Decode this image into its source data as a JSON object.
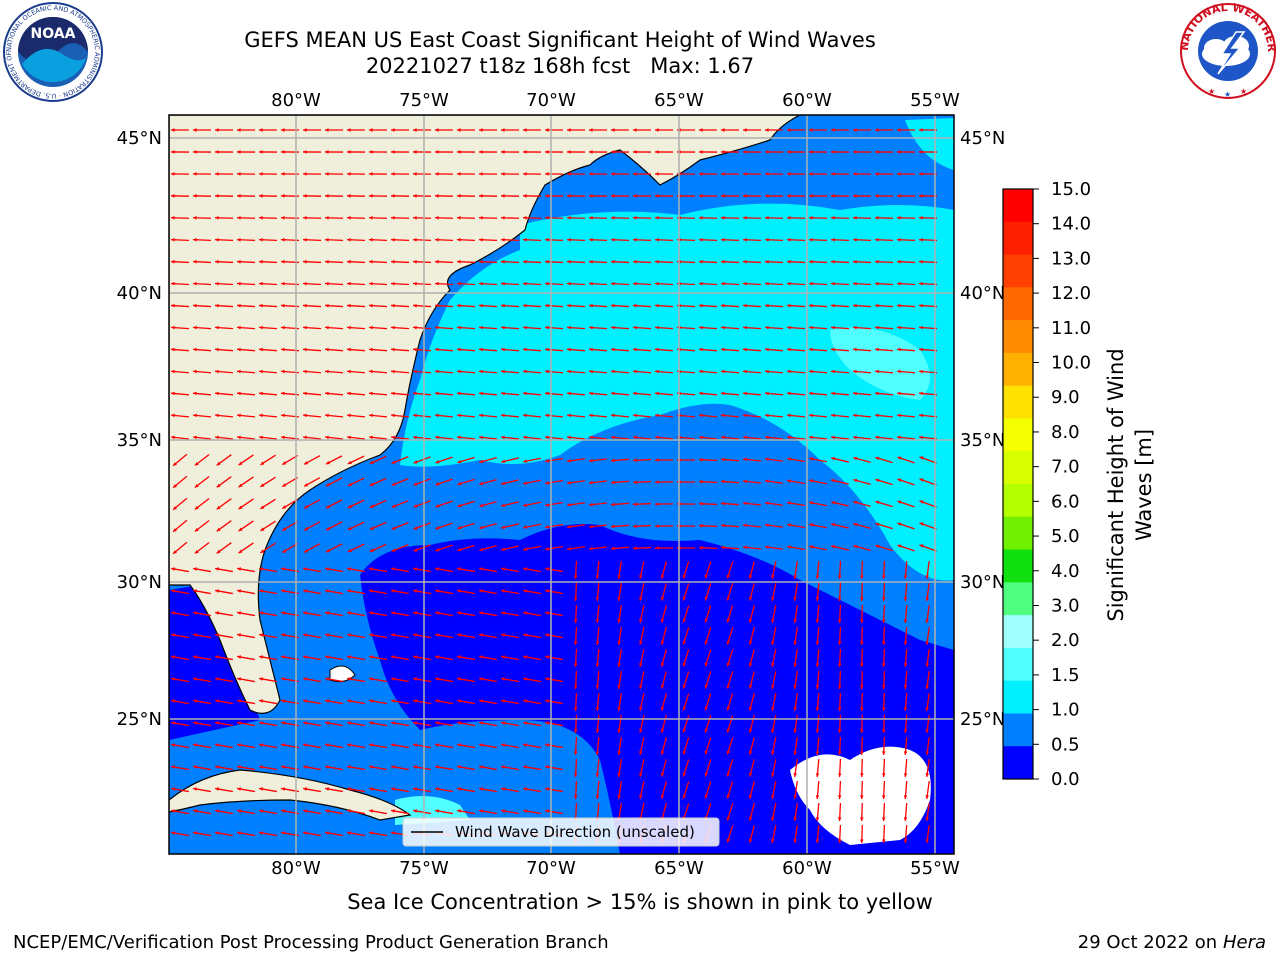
{
  "header": {
    "title_line1": "GEFS MEAN US East Coast Significant Height of Wind Waves",
    "title_line2": "20221027 t18z 168h fcst   Max: 1.67"
  },
  "logos": {
    "noaa_text": "NOAA",
    "noaa_ring": "NATIONAL OCEANIC AND ATMOSPHERIC ADMINISTRATION · U.S. DEPARTMENT OF COMMERCE",
    "nws_ring": "NATIONAL WEATHER SERVICE"
  },
  "map": {
    "lon_labels": [
      "80°W",
      "75°W",
      "70°W",
      "65°W",
      "60°W",
      "55°W"
    ],
    "lat_labels": [
      "45°N",
      "40°N",
      "35°N",
      "30°N",
      "25°N"
    ],
    "legend_label": "Wind Wave Direction (unscaled)"
  },
  "colorbar": {
    "label_line1": "Significant Height of Wind",
    "label_line2": "Waves [m]",
    "ticks": [
      "15.0",
      "14.0",
      "13.0",
      "12.0",
      "11.0",
      "10.0",
      "9.0",
      "8.0",
      "7.0",
      "6.0",
      "5.0",
      "4.0",
      "3.0",
      "2.0",
      "1.5",
      "1.0",
      "0.5",
      "0.0"
    ],
    "colors_top_to_bottom": [
      "#ff0000",
      "#ff2000",
      "#ff4000",
      "#ff6a00",
      "#ff8c00",
      "#ffb000",
      "#ffe000",
      "#f4ff00",
      "#d8ff00",
      "#b4ff00",
      "#70f000",
      "#10e010",
      "#50ff80",
      "#a0ffff",
      "#50ffff",
      "#00f0ff",
      "#0080ff",
      "#0000ff"
    ]
  },
  "footer": {
    "sea_ice_note": "Sea Ice Concentration > 15% is shown in pink to yellow",
    "left": "NCEP/EMC/Verification Post Processing Product Generation Branch",
    "right_prefix": "29 Oct 2022 on ",
    "right_italic": "Hera"
  }
}
